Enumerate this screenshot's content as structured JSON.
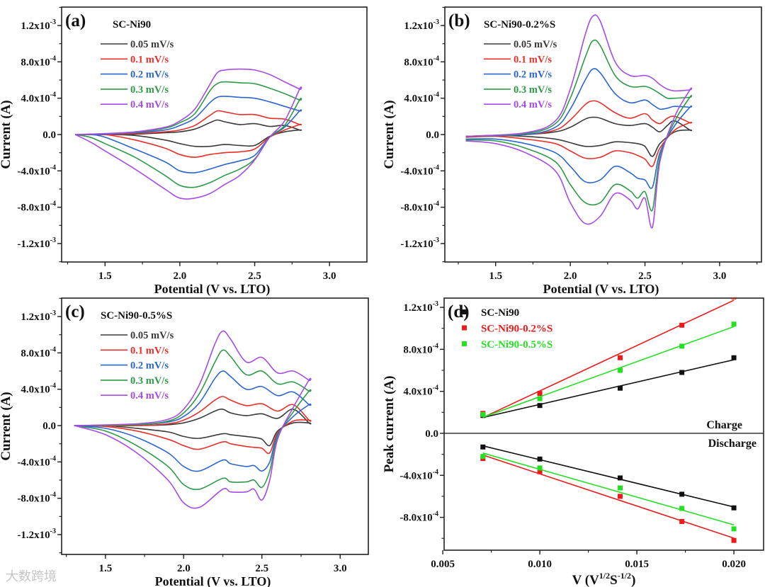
{
  "watermark": "大数跨境",
  "colors": {
    "0.05": "#3a3a3a",
    "0.1": "#e8302a",
    "0.2": "#2b66d0",
    "0.3": "#2e9a48",
    "0.4": "#a64be6",
    "black": "#111111",
    "red": "#f01818",
    "green": "#22e022"
  },
  "chart_data": [
    {
      "type": "line",
      "panel_label": "(a)",
      "title": "SC-Ni90",
      "xlabel": "Potential (V vs. LTO)",
      "ylabel": "Current (A)",
      "xlim": [
        1.21,
        3.25
      ],
      "ylim": [
        -0.001403,
        0.001403
      ],
      "y_unit_scale": 0.0001,
      "xticks": [
        "1.5",
        "2.0",
        "2.5",
        "3.0"
      ],
      "xtick_values": [
        1.5,
        2.0,
        2.5,
        3.0
      ],
      "yticks": [
        {
          "v": 0.0012,
          "b": "1.2x10",
          "e": "-3"
        },
        {
          "v": 0.0008,
          "b": "8.0x10",
          "e": "-4"
        },
        {
          "v": 0.0004,
          "b": "4.0x10",
          "e": "-4"
        },
        {
          "v": 0,
          "b": "0.0",
          "e": ""
        },
        {
          "v": -0.0004,
          "b": "-4.0x10",
          "e": "-4"
        },
        {
          "v": -0.0008,
          "b": "-8.0x10",
          "e": "-4"
        },
        {
          "v": -0.0012,
          "b": "-1.2x10",
          "e": "-3"
        }
      ],
      "anodic_x": [
        1.3,
        1.5,
        1.7,
        1.9,
        2.0,
        2.1,
        2.2,
        2.25,
        2.3,
        2.4,
        2.5,
        2.6,
        2.7,
        2.8
      ],
      "cathodic_x": [
        2.8,
        2.7,
        2.6,
        2.5,
        2.4,
        2.3,
        2.2,
        2.1,
        2.0,
        1.9,
        1.7,
        1.5,
        1.4,
        1.3
      ],
      "series": [
        {
          "name": "0.05 mV/s",
          "key": "0.05",
          "anodic": [
            0,
            0,
            0.05,
            0.2,
            0.3,
            0.6,
            1.3,
            1.6,
            1.4,
            1.1,
            1.2,
            0.9,
            1.0,
            0.5
          ],
          "cathodic": [
            0.5,
            0.3,
            -0.2,
            -1.2,
            -1.2,
            -1.1,
            -1.3,
            -1.3,
            -1.0,
            -0.6,
            -0.1,
            0,
            0,
            0
          ]
        },
        {
          "name": "0.1 mV/s",
          "key": "0.1",
          "anodic": [
            0,
            0,
            0.1,
            0.3,
            0.5,
            1.0,
            2.1,
            2.6,
            2.5,
            2.2,
            2.2,
            1.8,
            1.7,
            1.1
          ],
          "cathodic": [
            1.1,
            0.5,
            -0.3,
            -1.6,
            -1.9,
            -2.0,
            -2.2,
            -2.5,
            -2.2,
            -1.5,
            -0.6,
            0,
            0,
            0
          ]
        },
        {
          "name": "0.2 mV/s",
          "key": "0.2",
          "anodic": [
            0,
            0.05,
            0.2,
            0.5,
            1.0,
            1.8,
            3.5,
            4.1,
            4.2,
            4.1,
            4.0,
            3.6,
            3.1,
            2.6
          ],
          "cathodic": [
            2.6,
            0.8,
            -0.3,
            -2.3,
            -2.9,
            -3.3,
            -3.8,
            -4.2,
            -4.0,
            -3.0,
            -1.6,
            -0.3,
            0,
            0
          ]
        },
        {
          "name": "0.3 mV/s",
          "key": "0.3",
          "anodic": [
            0,
            0.1,
            0.25,
            0.7,
            1.3,
            2.3,
            4.8,
            5.6,
            5.8,
            5.7,
            5.6,
            5.1,
            4.5,
            3.8
          ],
          "cathodic": [
            3.8,
            1.0,
            -0.3,
            -2.7,
            -3.8,
            -4.5,
            -5.3,
            -5.8,
            -5.6,
            -4.5,
            -2.5,
            -1.0,
            -0.3,
            0
          ]
        },
        {
          "name": "0.4 mV/s",
          "key": "0.4",
          "anodic": [
            0,
            0.1,
            0.3,
            0.8,
            1.5,
            2.8,
            5.5,
            6.8,
            7.1,
            7.2,
            7.1,
            6.6,
            5.8,
            5.0
          ],
          "cathodic": [
            5.0,
            1.5,
            -0.3,
            -2.8,
            -4.5,
            -5.5,
            -6.5,
            -7.0,
            -7.0,
            -6.0,
            -3.8,
            -1.8,
            -0.8,
            0
          ]
        }
      ]
    },
    {
      "type": "line",
      "panel_label": "(b)",
      "title": "SC-Ni90-0.2%S",
      "xlabel": "Potential (V vs. LTO)",
      "ylabel": "Current (A)",
      "xlim": [
        1.16,
        3.28
      ],
      "ylim": [
        -0.001403,
        0.001403
      ],
      "y_unit_scale": 0.0001,
      "xticks": [
        "1.5",
        "2.0",
        "2.5",
        "3.0"
      ],
      "xtick_values": [
        1.5,
        2.0,
        2.5,
        3.0
      ],
      "yticks": [
        {
          "v": 0.0012,
          "b": "1.2x10",
          "e": "-3"
        },
        {
          "v": 0.0008,
          "b": "8.0x10",
          "e": "-4"
        },
        {
          "v": 0.0004,
          "b": "4.0x10",
          "e": "-4"
        },
        {
          "v": 0,
          "b": "0.0",
          "e": ""
        },
        {
          "v": -0.0004,
          "b": "-4.0x10",
          "e": "-4"
        },
        {
          "v": -0.0008,
          "b": "-8.0x10",
          "e": "-4"
        },
        {
          "v": -0.0012,
          "b": "-1.2x10",
          "e": "-3"
        }
      ],
      "anodic_x": [
        1.3,
        1.7,
        1.9,
        2.0,
        2.1,
        2.15,
        2.2,
        2.3,
        2.4,
        2.5,
        2.55,
        2.6,
        2.65,
        2.7,
        2.8
      ],
      "cathodic_x": [
        2.8,
        2.7,
        2.6,
        2.55,
        2.5,
        2.45,
        2.4,
        2.3,
        2.2,
        2.1,
        2.0,
        1.9,
        1.7,
        1.5,
        1.3
      ],
      "series": [
        {
          "name": "0.05 mV/s",
          "key": "0.05",
          "anodic": [
            -0.2,
            0,
            0.3,
            0.8,
            1.7,
            1.9,
            1.8,
            1.2,
            1.0,
            1.2,
            0.8,
            0.3,
            1.0,
            1.5,
            0.5
          ],
          "cathodic": [
            0.5,
            0.3,
            -1.0,
            -2.4,
            -1.3,
            -1.0,
            -0.9,
            -0.8,
            -1.2,
            -1.3,
            -0.9,
            -0.5,
            -0.2,
            -0.1,
            -0.2
          ]
        },
        {
          "name": "0.1 mV/s",
          "key": "0.1",
          "anodic": [
            -0.2,
            0,
            0.5,
            1.6,
            3.3,
            3.7,
            3.5,
            2.4,
            1.8,
            2.3,
            1.6,
            1.2,
            1.8,
            2.0,
            1.3
          ],
          "cathodic": [
            1.3,
            0.5,
            -1.5,
            -3.5,
            -2.7,
            -2.3,
            -2.0,
            -1.8,
            -2.5,
            -2.6,
            -1.8,
            -1.0,
            -0.5,
            -0.2,
            -0.3
          ]
        },
        {
          "name": "0.2 mV/s",
          "key": "0.2",
          "anodic": [
            -0.2,
            0,
            0.8,
            2.8,
            6,
            7.2,
            6.8,
            4.5,
            3.5,
            3.8,
            3.3,
            2.8,
            2.9,
            3.1,
            3.0
          ],
          "cathodic": [
            3.0,
            1.0,
            -2.0,
            -5.8,
            -5.0,
            -4.8,
            -4.2,
            -3.5,
            -5.0,
            -5.2,
            -3.5,
            -2.0,
            -1.0,
            -0.5,
            -0.5
          ]
        },
        {
          "name": "0.3 mV/s",
          "key": "0.3",
          "anodic": [
            -0.2,
            0.1,
            1.2,
            4,
            8.5,
            10.3,
            9.8,
            6.5,
            5.3,
            5.3,
            5.0,
            4.5,
            4.0,
            4.0,
            4.1
          ],
          "cathodic": [
            4.1,
            1.5,
            -2.5,
            -8.3,
            -6.3,
            -7.0,
            -6.2,
            -5.5,
            -7.5,
            -7.5,
            -5.5,
            -3.0,
            -1.5,
            -0.7,
            -0.6
          ]
        },
        {
          "name": "0.4 mV/s",
          "key": "0.4",
          "anodic": [
            -0.2,
            0.2,
            1.5,
            5,
            11,
            13,
            12.5,
            8,
            6.5,
            6.5,
            6.2,
            5.5,
            5.0,
            4.8,
            4.9
          ],
          "cathodic": [
            4.9,
            2.0,
            -3.0,
            -10.2,
            -7.0,
            -8.2,
            -7.2,
            -6.5,
            -9.0,
            -9.8,
            -7.5,
            -4.0,
            -2.0,
            -1.0,
            -0.7
          ]
        }
      ]
    },
    {
      "type": "line",
      "panel_label": "(c)",
      "title": "SC-Ni90-0.5%S",
      "xlabel": "Potential (V vs. LTO)",
      "ylabel": "Current (A)",
      "xlim": [
        1.22,
        3.18
      ],
      "ylim": [
        -0.001418,
        0.001403
      ],
      "y_unit_scale": 0.0001,
      "xticks": [
        "1.5",
        "2.0",
        "2.5",
        "3.0"
      ],
      "xtick_values": [
        1.5,
        2.0,
        2.5,
        3.0
      ],
      "yticks": [
        {
          "v": 0.0012,
          "b": "1.2x10",
          "e": "-3"
        },
        {
          "v": 0.0008,
          "b": "8.0x10",
          "e": "-4"
        },
        {
          "v": 0.0004,
          "b": "4.0x10",
          "e": "-4"
        },
        {
          "v": 0,
          "b": "0.0",
          "e": ""
        },
        {
          "v": -0.0004,
          "b": "-4.0x10",
          "e": "-4"
        },
        {
          "v": -0.0008,
          "b": "-8.0x10",
          "e": "-4"
        },
        {
          "v": -0.0012,
          "b": "-1.2x10",
          "e": "-3"
        }
      ],
      "anodic_x": [
        1.3,
        1.7,
        1.9,
        2.0,
        2.1,
        2.2,
        2.25,
        2.3,
        2.4,
        2.5,
        2.6,
        2.7,
        2.8
      ],
      "cathodic_x": [
        2.8,
        2.7,
        2.6,
        2.55,
        2.5,
        2.45,
        2.4,
        2.3,
        2.25,
        2.1,
        2.0,
        1.9,
        1.7,
        1.5,
        1.3
      ],
      "series": [
        {
          "name": "0.05 mV/s",
          "key": "0.05",
          "anodic": [
            0,
            0,
            0.1,
            0.3,
            0.8,
            1.6,
            1.8,
            1.4,
            1.1,
            1.3,
            0.8,
            1.8,
            0.3
          ],
          "cathodic": [
            0.3,
            0.3,
            -0.6,
            -2.2,
            -1.5,
            -1.3,
            -1.2,
            -1.0,
            -0.9,
            -1.4,
            -1.2,
            -0.7,
            -0.3,
            0,
            0
          ]
        },
        {
          "name": "0.1 mV/s",
          "key": "0.1",
          "anodic": [
            0,
            0,
            0.2,
            0.6,
            1.5,
            2.8,
            3.2,
            2.8,
            2.2,
            2.4,
            1.6,
            2.3,
            0.6
          ],
          "cathodic": [
            0.6,
            0.5,
            -0.8,
            -3.0,
            -2.5,
            -2.4,
            -2.3,
            -2.0,
            -1.8,
            -2.6,
            -2.2,
            -1.5,
            -0.6,
            -0.1,
            0
          ]
        },
        {
          "name": "0.2 mV/s",
          "key": "0.2",
          "anodic": [
            0,
            0.1,
            0.4,
            1.0,
            2.5,
            5.2,
            6.0,
            5.4,
            4.0,
            4.3,
            3.3,
            3.7,
            2.3
          ],
          "cathodic": [
            2.3,
            1.0,
            -1.0,
            -4.0,
            -5.0,
            -4.4,
            -4.5,
            -4.2,
            -3.8,
            -5.0,
            -4.5,
            -3.0,
            -1.3,
            -0.3,
            0
          ]
        },
        {
          "name": "0.3 mV/s",
          "key": "0.3",
          "anodic": [
            0,
            0.1,
            0.5,
            1.4,
            3.5,
            7,
            8.3,
            7.6,
            5.6,
            6.0,
            4.6,
            4.8,
            3.8
          ],
          "cathodic": [
            3.8,
            1.5,
            -1.2,
            -5.0,
            -6.8,
            -6.0,
            -6.2,
            -6.2,
            -5.8,
            -7.0,
            -6.5,
            -4.5,
            -2.2,
            -0.6,
            0
          ]
        },
        {
          "name": "0.4 mV/s",
          "key": "0.4",
          "anodic": [
            0,
            0.2,
            0.7,
            1.8,
            4.5,
            9,
            10.4,
            9.5,
            7,
            7.5,
            5.8,
            6.0,
            5.0
          ],
          "cathodic": [
            5.0,
            2.0,
            -1.5,
            -6.0,
            -8.2,
            -7.0,
            -7.3,
            -7.3,
            -7.0,
            -9.0,
            -8.5,
            -6.0,
            -3.0,
            -1.0,
            0
          ]
        }
      ]
    },
    {
      "type": "scatter",
      "panel_label": "(d)",
      "xlabel": {
        "pre": "V (V",
        "sup1": "1/2",
        "mid": "S",
        "sup2": "-1/2",
        "post": ")"
      },
      "ylabel": "Peak current (A)",
      "xlim": [
        0.00507,
        0.02153
      ],
      "ylim": [
        -0.001113,
        0.001288
      ],
      "xticks": [
        "0.005",
        "0.010",
        "0.015",
        "0.020"
      ],
      "xtick_values": [
        0.005,
        0.01,
        0.015,
        0.02
      ],
      "yticks": [
        {
          "v": 0.0012,
          "b": "1.2x10",
          "e": "-3"
        },
        {
          "v": 0.0008,
          "b": "8.0x10",
          "e": "-4"
        },
        {
          "v": 0.0004,
          "b": "4.0x10",
          "e": "-4"
        },
        {
          "v": 0,
          "b": "0.0",
          "e": ""
        },
        {
          "v": -0.0004,
          "b": "-4.0x10",
          "e": "-4"
        },
        {
          "v": -0.0008,
          "b": "-8.0x10",
          "e": "-4"
        }
      ],
      "annotations": {
        "charge": "Charge",
        "discharge": "Discharge"
      },
      "fit": "linear",
      "x": [
        0.00707,
        0.01,
        0.01414,
        0.01732,
        0.02
      ],
      "series": [
        {
          "name": "SC-Ni90",
          "key": "black",
          "charge": [
            0.00017,
            0.000265,
            0.00043,
            0.00058,
            0.00072
          ],
          "discharge": [
            -0.00013,
            -0.000245,
            -0.000425,
            -0.00058,
            -0.00071
          ]
        },
        {
          "name": "SC-Ni90-0.2%S",
          "key": "red",
          "charge": [
            0.00019,
            0.00038,
            0.00072,
            0.00103,
            0.0013
          ],
          "discharge": [
            -0.00024,
            -0.000365,
            -0.0006,
            -0.00084,
            -0.00102
          ]
        },
        {
          "name": "SC-Ni90-0.5%S",
          "key": "green",
          "charge": [
            0.00018,
            0.00033,
            0.0006,
            0.00083,
            0.00104
          ],
          "discharge": [
            -0.00022,
            -0.00033,
            -0.00052,
            -0.000715,
            -0.00091
          ]
        }
      ]
    }
  ]
}
